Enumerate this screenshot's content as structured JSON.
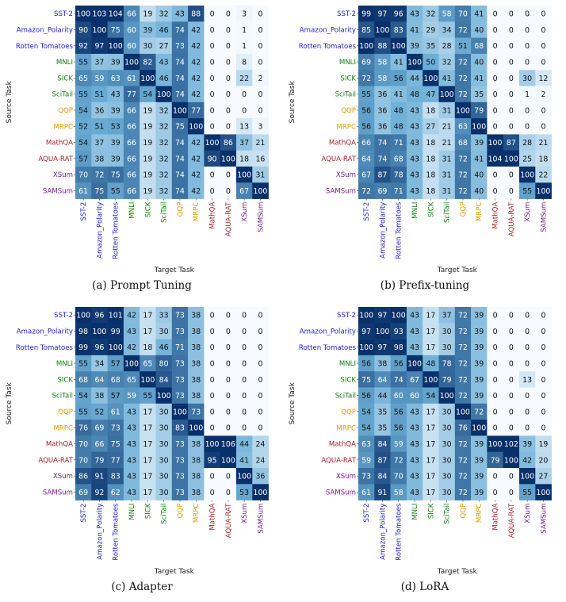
{
  "tasks": [
    "SST-2",
    "Amazon_Polarity",
    "Rotten Tomatoes",
    "MNLI",
    "SICK",
    "SciTail",
    "QQP",
    "MRPC",
    "MathQA",
    "AQUA-RAT",
    "XSum",
    "SAMSum"
  ],
  "task_colors": [
    "#1f1fcf",
    "#1f1fcf",
    "#1f1fcf",
    "#138013",
    "#138013",
    "#138013",
    "#e69a00",
    "#e69a00",
    "#a3222a",
    "#a3222a",
    "#7a1f8c",
    "#7a1f8c"
  ],
  "colormap": {
    "low": "#f7fbff",
    "mid": "#6baed6",
    "high": "#08306b",
    "dark_text": "#111111",
    "light_text": "#ffffff"
  },
  "chart_data": [
    {
      "type": "heatmap",
      "caption": "(a) Prompt Tuning",
      "xlabel": "Target Task",
      "ylabel": "Source Task",
      "values": [
        [
          100,
          103,
          104,
          66,
          19,
          32,
          43,
          88,
          0,
          0,
          3,
          0
        ],
        [
          90,
          100,
          75,
          60,
          39,
          46,
          74,
          42,
          0,
          0,
          1,
          0
        ],
        [
          92,
          97,
          100,
          60,
          30,
          27,
          73,
          42,
          0,
          0,
          1,
          0
        ],
        [
          55,
          37,
          39,
          100,
          82,
          43,
          74,
          42,
          0,
          0,
          8,
          0
        ],
        [
          65,
          59,
          63,
          61,
          100,
          46,
          74,
          42,
          0,
          0,
          22,
          2
        ],
        [
          55,
          51,
          43,
          77,
          54,
          100,
          74,
          42,
          0,
          0,
          0,
          0
        ],
        [
          54,
          36,
          39,
          66,
          19,
          32,
          100,
          77,
          0,
          0,
          0,
          0
        ],
        [
          52,
          51,
          53,
          66,
          19,
          32,
          75,
          100,
          0,
          0,
          13,
          3
        ],
        [
          54,
          37,
          39,
          66,
          19,
          32,
          74,
          42,
          100,
          86,
          37,
          21
        ],
        [
          57,
          38,
          39,
          66,
          19,
          32,
          74,
          42,
          90,
          100,
          18,
          16
        ],
        [
          70,
          72,
          75,
          66,
          19,
          32,
          74,
          42,
          0,
          0,
          100,
          31
        ],
        [
          61,
          75,
          55,
          66,
          19,
          32,
          74,
          42,
          0,
          0,
          67,
          100
        ]
      ]
    },
    {
      "type": "heatmap",
      "caption": "(b) Prefix-tuning",
      "xlabel": "Target Task",
      "ylabel": "Source Task",
      "values": [
        [
          99,
          97,
          96,
          43,
          32,
          58,
          70,
          41,
          0,
          0,
          0,
          0
        ],
        [
          85,
          100,
          83,
          41,
          29,
          34,
          72,
          40,
          0,
          0,
          0,
          0
        ],
        [
          100,
          88,
          100,
          39,
          35,
          28,
          51,
          68,
          0,
          0,
          0,
          0
        ],
        [
          69,
          58,
          41,
          100,
          50,
          32,
          72,
          40,
          0,
          0,
          0,
          0
        ],
        [
          72,
          58,
          56,
          44,
          100,
          41,
          72,
          41,
          0,
          0,
          30,
          12
        ],
        [
          55,
          36,
          41,
          48,
          47,
          100,
          72,
          35,
          0,
          0,
          1,
          2
        ],
        [
          56,
          36,
          48,
          43,
          18,
          31,
          100,
          79,
          0,
          0,
          0,
          0
        ],
        [
          56,
          36,
          48,
          43,
          27,
          21,
          63,
          100,
          0,
          0,
          0,
          0
        ],
        [
          66,
          74,
          71,
          43,
          18,
          21,
          68,
          39,
          100,
          87,
          28,
          21
        ],
        [
          64,
          74,
          68,
          43,
          18,
          31,
          72,
          41,
          104,
          100,
          25,
          18
        ],
        [
          67,
          87,
          78,
          43,
          18,
          31,
          72,
          40,
          0,
          0,
          100,
          22
        ],
        [
          72,
          69,
          71,
          43,
          18,
          31,
          72,
          40,
          0,
          0,
          55,
          100
        ]
      ]
    },
    {
      "type": "heatmap",
      "caption": "(c) Adapter",
      "xlabel": "Target Task",
      "ylabel": "Source Task",
      "values": [
        [
          100,
          96,
          101,
          42,
          17,
          33,
          73,
          38,
          0,
          0,
          0,
          0
        ],
        [
          98,
          100,
          99,
          43,
          17,
          30,
          73,
          38,
          0,
          0,
          0,
          0
        ],
        [
          99,
          96,
          100,
          42,
          18,
          46,
          71,
          38,
          0,
          0,
          0,
          0
        ],
        [
          55,
          34,
          57,
          100,
          65,
          80,
          73,
          38,
          0,
          0,
          0,
          0
        ],
        [
          68,
          64,
          68,
          65,
          100,
          84,
          73,
          38,
          0,
          0,
          0,
          0
        ],
        [
          54,
          38,
          57,
          59,
          55,
          100,
          73,
          38,
          0,
          0,
          0,
          0
        ],
        [
          55,
          52,
          61,
          43,
          17,
          30,
          100,
          73,
          0,
          0,
          0,
          0
        ],
        [
          76,
          69,
          73,
          43,
          17,
          30,
          83,
          100,
          0,
          0,
          0,
          0
        ],
        [
          70,
          66,
          75,
          43,
          17,
          30,
          73,
          38,
          100,
          106,
          44,
          24
        ],
        [
          70,
          79,
          77,
          43,
          17,
          30,
          73,
          38,
          95,
          100,
          41,
          24
        ],
        [
          86,
          91,
          83,
          43,
          17,
          30,
          73,
          38,
          0,
          0,
          100,
          36
        ],
        [
          69,
          92,
          62,
          43,
          17,
          30,
          73,
          38,
          0,
          0,
          53,
          100
        ]
      ]
    },
    {
      "type": "heatmap",
      "caption": "(d) LoRA",
      "xlabel": "Target Task",
      "ylabel": "Source Task",
      "values": [
        [
          100,
          97,
          100,
          43,
          17,
          37,
          72,
          39,
          0,
          0,
          0,
          0
        ],
        [
          97,
          100,
          93,
          43,
          17,
          30,
          72,
          39,
          0,
          0,
          0,
          0
        ],
        [
          100,
          97,
          98,
          43,
          17,
          30,
          72,
          39,
          0,
          0,
          0,
          0
        ],
        [
          56,
          38,
          56,
          100,
          48,
          78,
          72,
          39,
          0,
          0,
          0,
          0
        ],
        [
          75,
          64,
          74,
          67,
          100,
          79,
          72,
          39,
          0,
          0,
          13,
          0
        ],
        [
          56,
          44,
          60,
          60,
          54,
          100,
          72,
          39,
          0,
          0,
          0,
          0
        ],
        [
          54,
          35,
          56,
          43,
          17,
          30,
          100,
          72,
          0,
          0,
          0,
          0
        ],
        [
          54,
          35,
          56,
          43,
          17,
          30,
          76,
          100,
          0,
          0,
          0,
          0
        ],
        [
          63,
          84,
          59,
          43,
          17,
          30,
          72,
          39,
          100,
          102,
          39,
          19
        ],
        [
          59,
          87,
          72,
          43,
          17,
          30,
          72,
          39,
          79,
          100,
          42,
          20
        ],
        [
          73,
          84,
          70,
          43,
          17,
          30,
          72,
          39,
          0,
          0,
          100,
          27
        ],
        [
          61,
          91,
          58,
          43,
          17,
          30,
          72,
          39,
          0,
          0,
          55,
          100
        ]
      ]
    }
  ]
}
